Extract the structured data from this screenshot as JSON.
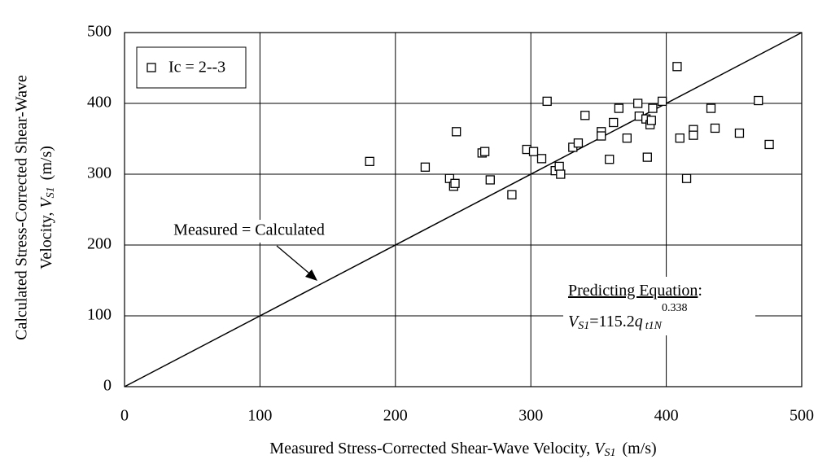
{
  "chart_data": {
    "type": "scatter",
    "x_label": {
      "text": "Measured Stress-Corrected Shear-Wave Velocity, ",
      "symbol": "V",
      "subscript": "S1",
      "unit": "(m/s)"
    },
    "y_label": {
      "line1": "Calculated Stress-Corrected Shear-Wave",
      "text": "Velocity, ",
      "symbol": "V",
      "subscript": "S1",
      "unit": "(m/s)"
    },
    "xlim": [
      0,
      500
    ],
    "ylim": [
      0,
      500
    ],
    "xticks": [
      0,
      100,
      200,
      300,
      400,
      500
    ],
    "yticks": [
      0,
      100,
      200,
      300,
      400,
      500
    ],
    "grid": true,
    "legend": "upper left",
    "series": [
      {
        "name": "Ic = 2--3",
        "color": "#000000",
        "x": [
          181,
          222,
          240,
          243,
          244,
          245,
          264,
          266,
          270,
          286,
          297,
          302,
          308,
          312,
          318,
          321,
          322,
          331,
          335,
          340,
          352,
          352,
          358,
          361,
          365,
          371,
          379,
          380,
          386,
          385,
          388,
          389,
          390,
          397,
          408,
          410,
          415,
          420,
          420,
          433,
          436,
          454,
          468,
          476
        ],
        "values": [
          318,
          310,
          294,
          283,
          287,
          360,
          330,
          332,
          292,
          271,
          335,
          332,
          322,
          403,
          305,
          311,
          300,
          338,
          344,
          383,
          360,
          354,
          321,
          373,
          393,
          351,
          400,
          382,
          324,
          378,
          370,
          376,
          393,
          403,
          452,
          351,
          294,
          363,
          355,
          393,
          365,
          358,
          404,
          342
        ]
      }
    ],
    "reference_line": {
      "label": "Measured = Calculated",
      "x": [
        0,
        500
      ],
      "y": [
        0,
        500
      ]
    },
    "equation": {
      "heading": "Predicting Equation",
      "colon": ":",
      "symbol": "V",
      "subscript": "S1",
      "text": "=115.2",
      "q": "q",
      "q_subscript": "t1N",
      "exponent": "0.338"
    }
  }
}
